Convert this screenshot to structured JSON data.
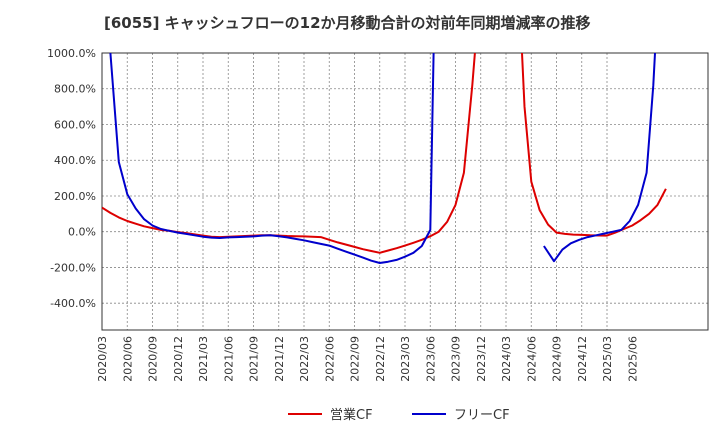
{
  "chart_data": {
    "type": "line",
    "title": "[6055]  キャッシュフローの12か月移動合計の対前年同期増減率の推移",
    "xlabel": "",
    "ylabel": "",
    "ylim": [
      -550,
      1000
    ],
    "yticks": [
      1000,
      800,
      600,
      400,
      200,
      0,
      -200,
      -400
    ],
    "ytick_labels": [
      "1000.0%",
      "800.0%",
      "600.0%",
      "400.0%",
      "200.0%",
      "0.0%",
      "-200.0%",
      "-400.0%"
    ],
    "xlim": [
      0,
      72
    ],
    "xtick_labels": [
      "2020/03",
      "2020/06",
      "2020/09",
      "2020/12",
      "2021/03",
      "2021/06",
      "2021/09",
      "2021/12",
      "2022/03",
      "2022/06",
      "2022/09",
      "2022/12",
      "2023/03",
      "2023/06",
      "2023/09",
      "2023/12",
      "2024/03",
      "2024/06",
      "2024/09",
      "2024/12",
      "2025/03",
      "2025/06"
    ],
    "grid": true,
    "legend_position": "bottom",
    "series": [
      {
        "name": "営業CF",
        "color": "#dd0000",
        "points": [
          [
            0,
            135
          ],
          [
            1,
            105
          ],
          [
            2,
            80
          ],
          [
            3,
            60
          ],
          [
            4,
            45
          ],
          [
            5,
            30
          ],
          [
            6,
            20
          ],
          [
            7,
            10
          ],
          [
            8,
            5
          ],
          [
            9,
            -2
          ],
          [
            10,
            -8
          ],
          [
            11,
            -15
          ],
          [
            12,
            -22
          ],
          [
            13,
            -28
          ],
          [
            14,
            -30
          ],
          [
            15,
            -28
          ],
          [
            16,
            -26
          ],
          [
            17,
            -24
          ],
          [
            18,
            -22
          ],
          [
            19,
            -20
          ],
          [
            20,
            -20
          ],
          [
            21,
            -22
          ],
          [
            22,
            -24
          ],
          [
            23,
            -25
          ],
          [
            24,
            -26
          ],
          [
            25,
            -28
          ],
          [
            26,
            -30
          ],
          [
            27,
            -45
          ],
          [
            28,
            -60
          ],
          [
            29,
            -72
          ],
          [
            30,
            -85
          ],
          [
            31,
            -98
          ],
          [
            32,
            -108
          ],
          [
            33,
            -118
          ],
          [
            34,
            -105
          ],
          [
            35,
            -92
          ],
          [
            36,
            -78
          ],
          [
            37,
            -62
          ],
          [
            38,
            -45
          ],
          [
            39,
            -25
          ],
          [
            40,
            0
          ],
          [
            41,
            55
          ],
          [
            42,
            150
          ],
          [
            43,
            330
          ],
          [
            44,
            820
          ],
          [
            44.3,
            1000
          ],
          [
            null,
            null
          ],
          [
            49.9,
            1000
          ],
          [
            50.2,
            700
          ],
          [
            51,
            280
          ],
          [
            52,
            120
          ],
          [
            53,
            40
          ],
          [
            54,
            -5
          ],
          [
            55,
            -12
          ],
          [
            56,
            -16
          ],
          [
            57,
            -18
          ],
          [
            58,
            -20
          ],
          [
            59,
            -21
          ],
          [
            60,
            -22
          ],
          [
            61,
            -5
          ],
          [
            62,
            15
          ],
          [
            63,
            35
          ],
          [
            64,
            65
          ],
          [
            65,
            100
          ],
          [
            66,
            150
          ],
          [
            67,
            240
          ]
        ]
      },
      {
        "name": "フリーCF",
        "color": "#0000cc",
        "points": [
          [
            1,
            1000
          ],
          [
            2,
            390
          ],
          [
            3,
            210
          ],
          [
            4,
            130
          ],
          [
            5,
            70
          ],
          [
            6,
            35
          ],
          [
            7,
            15
          ],
          [
            8,
            5
          ],
          [
            9,
            -5
          ],
          [
            10,
            -12
          ],
          [
            11,
            -20
          ],
          [
            12,
            -28
          ],
          [
            13,
            -33
          ],
          [
            14,
            -35
          ],
          [
            15,
            -32
          ],
          [
            16,
            -30
          ],
          [
            17,
            -28
          ],
          [
            18,
            -26
          ],
          [
            19,
            -22
          ],
          [
            20,
            -20
          ],
          [
            21,
            -25
          ],
          [
            22,
            -32
          ],
          [
            23,
            -40
          ],
          [
            24,
            -48
          ],
          [
            25,
            -58
          ],
          [
            26,
            -68
          ],
          [
            27,
            -78
          ],
          [
            28,
            -95
          ],
          [
            29,
            -112
          ],
          [
            30,
            -128
          ],
          [
            31,
            -145
          ],
          [
            32,
            -162
          ],
          [
            33,
            -175
          ],
          [
            34,
            -168
          ],
          [
            35,
            -158
          ],
          [
            36,
            -140
          ],
          [
            37,
            -118
          ],
          [
            38,
            -80
          ],
          [
            39,
            10
          ],
          [
            39.4,
            1000
          ],
          [
            null,
            null
          ],
          [
            52.5,
            -80
          ],
          [
            53.7,
            -165
          ],
          [
            54.7,
            -100
          ],
          [
            55.7,
            -65
          ],
          [
            56.7,
            -45
          ],
          [
            57.7,
            -30
          ],
          [
            58.7,
            -20
          ],
          [
            59.7,
            -10
          ],
          [
            60.7,
            0
          ],
          [
            61.7,
            10
          ],
          [
            62.7,
            60
          ],
          [
            63.7,
            150
          ],
          [
            64.7,
            330
          ],
          [
            65.5,
            820
          ],
          [
            65.7,
            1000
          ]
        ]
      }
    ]
  }
}
